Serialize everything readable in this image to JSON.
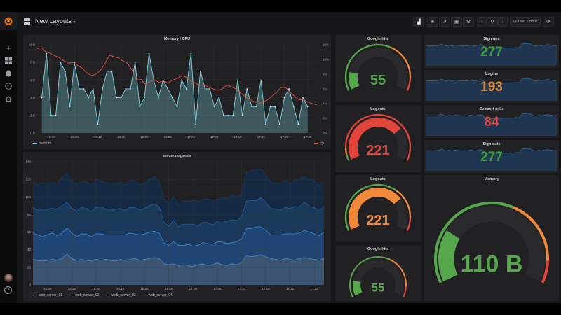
{
  "topbar": {
    "title": "New Layouts",
    "time_range": "Last 1 hour",
    "icons": [
      "add-panel-icon",
      "star-icon",
      "share-icon",
      "save-icon",
      "gear-icon",
      "chevron-left-icon",
      "zoom-out-icon",
      "chevron-right-icon",
      "clock-icon",
      "refresh-icon"
    ]
  },
  "sidebar": {
    "icons": [
      "grafana-logo",
      "plus-icon",
      "dashboards-icon",
      "bell-icon",
      "globe-icon",
      "gear-icon",
      "avatar",
      "help-icon"
    ]
  },
  "colors": {
    "green": "#56a64b",
    "orange": "#f2883a",
    "red": "#e0443a",
    "memory_line": "#7fd3df",
    "cpu_line": "#e24d42"
  },
  "chart_data": [
    {
      "type": "line",
      "title": "Memory / CPU",
      "x_ticks": [
        "16:30",
        "16:35",
        "16:40",
        "16:45",
        "16:50",
        "16:55",
        "17:00",
        "17:05",
        "17:10",
        "17:15",
        "17:20",
        "17:25"
      ],
      "x_range": [
        "16:27",
        "17:27"
      ],
      "y_left_ticks": [
        "0 B",
        "2 B",
        "4 B",
        "6 B",
        "8 B",
        "10 B"
      ],
      "y_left_range": [
        0,
        10
      ],
      "y_right_ticks": [
        "0%",
        "2%",
        "4%",
        "6%",
        "8%",
        "10%",
        "12%"
      ],
      "y_right_range": [
        0,
        12
      ],
      "grid": true,
      "legend": "bottom",
      "series": [
        {
          "name": "memory",
          "axis": "left",
          "unit": "B",
          "x_start": "16:28",
          "step_min": 1,
          "fill": true,
          "values": [
            4,
            9,
            2,
            2,
            8,
            7,
            3,
            8,
            5,
            5,
            4,
            5,
            1,
            5,
            7,
            7,
            4,
            4,
            5,
            5,
            8,
            3,
            4,
            9,
            6,
            4,
            6,
            5,
            4,
            3,
            6,
            5,
            9,
            1,
            7,
            5,
            5,
            3,
            4,
            2,
            2,
            2,
            6,
            2,
            5,
            3,
            3,
            6,
            1,
            3,
            3,
            1,
            4,
            5,
            3,
            1,
            4,
            3
          ]
        },
        {
          "name": "cpu",
          "axis": "right",
          "unit": "%",
          "x_start": "16:27",
          "x_end": "17:27",
          "values": [
            11.5,
            11.6,
            11,
            10.8,
            10.5,
            10.2,
            9.8,
            9.5,
            9.6,
            9.2,
            8.8,
            8.2,
            7.8,
            8,
            8.5,
            9.4,
            10.6,
            10.4,
            10.2,
            9.8,
            9.5,
            8.6,
            7.2,
            7.3,
            6.6,
            7.0,
            7.2,
            6.9,
            7.1,
            6.8,
            7.2,
            7.4,
            7.8,
            7.6,
            7.0,
            6.8,
            6.5,
            6.6,
            6.2,
            6.0,
            5.8,
            6.0,
            6.5,
            6.3,
            6.0,
            5.5,
            5.0,
            4.6,
            4.3,
            4.0,
            4.2,
            4.5,
            5.0,
            5.5,
            6.2,
            6.2,
            5.6,
            5.0,
            4.5,
            4.6,
            4.2,
            4.0,
            3.8
          ]
        }
      ]
    },
    {
      "type": "area",
      "title": "server requests",
      "stacked": true,
      "x_ticks": [
        "16:30",
        "16:35",
        "16:40",
        "16:45",
        "16:50",
        "16:55",
        "17:00",
        "17:05",
        "17:10",
        "17:15",
        "17:20",
        "17:25"
      ],
      "x_range": [
        "16:27",
        "17:27"
      ],
      "x_start": "16:27",
      "step_min": 1,
      "y_ticks": [
        "0",
        "20",
        "40",
        "60",
        "80",
        "100",
        "120",
        "140"
      ],
      "y_range": [
        0,
        140
      ],
      "grid": true,
      "legend": "bottom",
      "series": [
        {
          "name": "web_server_01",
          "color": "#5d88b5",
          "fill": "#3a5471",
          "values": [
            29,
            28,
            27,
            28,
            29,
            28,
            30,
            35,
            30,
            28,
            29,
            28,
            27,
            29,
            28,
            29,
            28,
            27,
            29,
            28,
            29,
            30,
            28,
            29,
            30,
            31,
            30,
            24,
            23,
            24,
            22,
            23,
            22,
            21,
            23,
            24,
            22,
            23,
            25,
            23,
            22,
            24,
            23,
            25,
            33,
            32,
            33,
            34,
            32,
            30,
            29,
            28,
            30,
            29,
            28,
            30,
            31,
            30,
            29,
            28,
            30
          ]
        },
        {
          "name": "web_server_02",
          "color": "#3f86d0",
          "fill": "#1f4674",
          "values": [
            30,
            29,
            28,
            29,
            30,
            28,
            29,
            30,
            29,
            27,
            29,
            30,
            28,
            29,
            30,
            28,
            29,
            30,
            28,
            29,
            30,
            28,
            29,
            29,
            30,
            30,
            29,
            24,
            22,
            25,
            23,
            22,
            24,
            23,
            22,
            24,
            25,
            23,
            24,
            26,
            25,
            24,
            26,
            27,
            31,
            32,
            33,
            32,
            30,
            27,
            28,
            29,
            28,
            29,
            30,
            29,
            31,
            30,
            29,
            28,
            30
          ]
        },
        {
          "name": "web_server_03",
          "color": "#2a5f98",
          "fill": "#1a3859",
          "values": [
            29,
            28,
            30,
            29,
            28,
            30,
            31,
            29,
            28,
            29,
            30,
            29,
            28,
            30,
            31,
            29,
            28,
            29,
            30,
            28,
            29,
            30,
            28,
            29,
            30,
            31,
            30,
            23,
            22,
            24,
            21,
            24,
            23,
            25,
            22,
            23,
            24,
            22,
            23,
            24,
            25,
            26,
            24,
            25,
            31,
            32,
            30,
            33,
            32,
            30,
            29,
            28,
            30,
            29,
            31,
            30,
            32,
            29,
            30,
            28,
            29
          ]
        },
        {
          "name": "web_server_04",
          "color": "#17385c",
          "fill": "#152a42",
          "values": [
            30,
            29,
            31,
            28,
            30,
            29,
            32,
            33,
            31,
            30,
            29,
            31,
            30,
            32,
            29,
            30,
            31,
            28,
            30,
            29,
            31,
            30,
            29,
            28,
            30,
            31,
            29,
            27,
            26,
            28,
            25,
            27,
            26,
            27,
            28,
            26,
            27,
            28,
            25,
            27,
            26,
            28,
            27,
            26,
            33,
            34,
            35,
            33,
            32,
            30,
            29,
            30,
            31,
            28,
            30,
            32,
            29,
            31,
            30,
            29,
            30
          ]
        }
      ]
    }
  ],
  "gauges": [
    {
      "title": "Google hits",
      "value": "55",
      "fill": 0.15,
      "value_color": "#56a64b",
      "thresholds": [
        0.6,
        0.9
      ]
    },
    {
      "title": "Logouts",
      "value": "221",
      "fill": 0.72,
      "value_color": "#e0443a",
      "thresholds": [
        0.05,
        0.1
      ]
    },
    {
      "title": "Logouts",
      "value": "221",
      "fill": 0.72,
      "value_color": "#f2883a",
      "thresholds": [
        0.65,
        0.9
      ]
    },
    {
      "title": "Google hits",
      "value": "55",
      "fill": 0.15,
      "value_color": "#56a64b",
      "thresholds": [
        0.6,
        0.9
      ]
    },
    {
      "title": "Memory",
      "value": "110 B",
      "fill": 0.25,
      "value_color": "#56a64b",
      "thresholds": [
        0.6,
        0.9
      ]
    }
  ],
  "stats": [
    {
      "title": "Sign ups",
      "value": "277",
      "color": "#37a33c"
    },
    {
      "title": "Logins",
      "value": "193",
      "color": "#e5873a"
    },
    {
      "title": "Support calls",
      "value": "84",
      "color": "#e0443a"
    },
    {
      "title": "Sign outs",
      "value": "277",
      "color": "#37a33c"
    }
  ]
}
